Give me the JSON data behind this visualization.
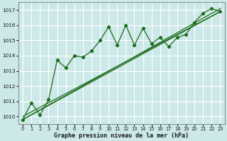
{
  "xlabel": "Graphe pression niveau de la mer (hPa)",
  "bg_color": "#cce8e8",
  "grid_color": "#ffffff",
  "line_color": "#1a6b1a",
  "xlim": [
    -0.5,
    23.5
  ],
  "ylim": [
    1009.5,
    1017.5
  ],
  "yticks": [
    1010,
    1011,
    1012,
    1013,
    1014,
    1015,
    1016,
    1017
  ],
  "xticks": [
    0,
    1,
    2,
    3,
    4,
    5,
    6,
    7,
    8,
    9,
    10,
    11,
    12,
    13,
    14,
    15,
    16,
    17,
    18,
    19,
    20,
    21,
    22,
    23
  ],
  "main_x": [
    0,
    1,
    2,
    3,
    4,
    5,
    6,
    7,
    8,
    9,
    10,
    11,
    12,
    13,
    14,
    15,
    16,
    17,
    18,
    19,
    20,
    21,
    22,
    23
  ],
  "main_y": [
    1009.8,
    1010.9,
    1010.1,
    1011.1,
    1013.7,
    1013.2,
    1014.0,
    1013.9,
    1014.3,
    1015.0,
    1015.9,
    1014.7,
    1016.0,
    1014.7,
    1015.8,
    1014.8,
    1015.2,
    1014.6,
    1015.2,
    1015.4,
    1016.2,
    1016.8,
    1017.1,
    1016.9
  ],
  "line1_x": [
    0,
    23
  ],
  "line1_y": [
    1009.8,
    1016.9
  ],
  "line2_x": [
    0,
    23
  ],
  "line2_y": [
    1009.8,
    1017.1
  ],
  "line3_x": [
    0,
    23
  ],
  "line3_y": [
    1010.0,
    1016.9
  ]
}
